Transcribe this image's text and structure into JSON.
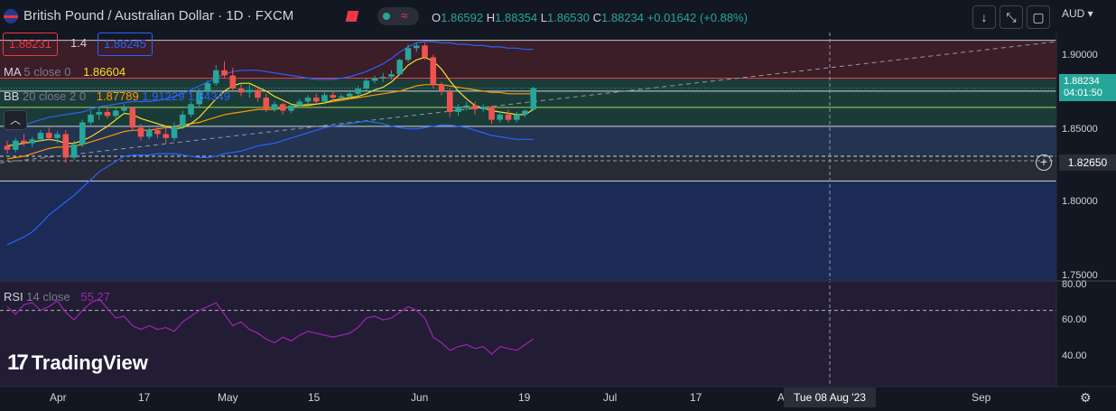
{
  "header": {
    "symbol": "British Pound / Australian Dollar · 1D · FXCM",
    "open_label": "O",
    "open": "1.86592",
    "high_label": "H",
    "high": "1.88354",
    "low_label": "L",
    "low": "1.86530",
    "close_label": "C",
    "close": "1.88234",
    "change": "+0.01642 (+0.88%)"
  },
  "price_boxes": {
    "sell": "1.88231",
    "spread": "1.4",
    "buy": "1.88245"
  },
  "indicators": {
    "ma_label": "MA",
    "ma_params": "5 close 0",
    "ma_value": "1.86604",
    "bb_label": "BB",
    "bb_params": "20 close 2 0",
    "bb_basis": "1.87789",
    "bb_upper": "1.91229",
    "bb_lower": "1.84349",
    "rsi_label": "RSI",
    "rsi_params": "14 close",
    "rsi_value": "55.27"
  },
  "currency": "AUD",
  "price_axis": [
    "1.90000",
    "1.85000",
    "1.80000",
    "1.75000"
  ],
  "rsi_axis": [
    "80.00",
    "60.00",
    "40.00"
  ],
  "last_price": {
    "price": "1.88234",
    "countdown": "04:01:50"
  },
  "crosshair": {
    "price": "1.82650",
    "date": "Tue 08 Aug '23"
  },
  "time_axis": [
    "Apr",
    "17",
    "May",
    "15",
    "Jun",
    "19",
    "Jul",
    "17",
    "A",
    "Sep"
  ],
  "brand": "TradingView",
  "colors": {
    "up": "#26a69a",
    "down": "#ef5350",
    "ma": "#f5e02c",
    "bb_basis": "#ff9800",
    "bb_band": "#2962ff",
    "rsi": "#9c27b0"
  },
  "chart_data": {
    "type": "candlestick",
    "ylim": [
      1.735,
      1.925
    ],
    "candles": [
      [
        1.838,
        1.842,
        1.832,
        1.835
      ],
      [
        1.835,
        1.844,
        1.833,
        1.842
      ],
      [
        1.842,
        1.847,
        1.838,
        1.84
      ],
      [
        1.84,
        1.845,
        1.837,
        1.843
      ],
      [
        1.843,
        1.85,
        1.841,
        1.848
      ],
      [
        1.848,
        1.852,
        1.842,
        1.844
      ],
      [
        1.844,
        1.849,
        1.84,
        1.847
      ],
      [
        1.847,
        1.85,
        1.825,
        1.829
      ],
      [
        1.829,
        1.842,
        1.827,
        1.839
      ],
      [
        1.839,
        1.858,
        1.837,
        1.856
      ],
      [
        1.856,
        1.865,
        1.854,
        1.862
      ],
      [
        1.862,
        1.868,
        1.858,
        1.864
      ],
      [
        1.864,
        1.867,
        1.859,
        1.861
      ],
      [
        1.861,
        1.867,
        1.858,
        1.865
      ],
      [
        1.865,
        1.87,
        1.862,
        1.867
      ],
      [
        1.867,
        1.868,
        1.85,
        1.852
      ],
      [
        1.852,
        1.855,
        1.842,
        1.845
      ],
      [
        1.845,
        1.852,
        1.843,
        1.85
      ],
      [
        1.85,
        1.853,
        1.844,
        1.847
      ],
      [
        1.847,
        1.852,
        1.84,
        1.844
      ],
      [
        1.844,
        1.856,
        1.842,
        1.853
      ],
      [
        1.853,
        1.865,
        1.851,
        1.862
      ],
      [
        1.862,
        1.872,
        1.86,
        1.87
      ],
      [
        1.87,
        1.882,
        1.868,
        1.88
      ],
      [
        1.88,
        1.888,
        1.878,
        1.886
      ],
      [
        1.886,
        1.9,
        1.884,
        1.896
      ],
      [
        1.896,
        1.903,
        1.89,
        1.892
      ],
      [
        1.892,
        1.898,
        1.88,
        1.882
      ],
      [
        1.882,
        1.886,
        1.876,
        1.879
      ],
      [
        1.879,
        1.885,
        1.875,
        1.881
      ],
      [
        1.881,
        1.883,
        1.872,
        1.875
      ],
      [
        1.875,
        1.878,
        1.864,
        1.866
      ],
      [
        1.866,
        1.872,
        1.864,
        1.87
      ],
      [
        1.87,
        1.871,
        1.862,
        1.865
      ],
      [
        1.865,
        1.87,
        1.863,
        1.869
      ],
      [
        1.869,
        1.874,
        1.867,
        1.872
      ],
      [
        1.872,
        1.877,
        1.87,
        1.875
      ],
      [
        1.875,
        1.878,
        1.87,
        1.872
      ],
      [
        1.872,
        1.879,
        1.87,
        1.877
      ],
      [
        1.877,
        1.88,
        1.872,
        1.875
      ],
      [
        1.875,
        1.878,
        1.873,
        1.876
      ],
      [
        1.876,
        1.88,
        1.874,
        1.878
      ],
      [
        1.878,
        1.884,
        1.876,
        1.882
      ],
      [
        1.882,
        1.89,
        1.88,
        1.888
      ],
      [
        1.888,
        1.892,
        1.886,
        1.89
      ],
      [
        1.89,
        1.894,
        1.887,
        1.891
      ],
      [
        1.891,
        1.896,
        1.889,
        1.893
      ],
      [
        1.893,
        1.905,
        1.892,
        1.904
      ],
      [
        1.904,
        1.916,
        1.902,
        1.913
      ],
      [
        1.913,
        1.917,
        1.91,
        1.915
      ],
      [
        1.915,
        1.917,
        1.904,
        1.906
      ],
      [
        1.906,
        1.908,
        1.882,
        1.885
      ],
      [
        1.885,
        1.887,
        1.877,
        1.88
      ],
      [
        1.88,
        1.882,
        1.86,
        1.864
      ],
      [
        1.864,
        1.87,
        1.861,
        1.868
      ],
      [
        1.868,
        1.872,
        1.865,
        1.869
      ],
      [
        1.869,
        1.872,
        1.862,
        1.866
      ],
      [
        1.866,
        1.87,
        1.864,
        1.868
      ],
      [
        1.868,
        1.869,
        1.855,
        1.858
      ],
      [
        1.858,
        1.864,
        1.856,
        1.862
      ],
      [
        1.862,
        1.866,
        1.856,
        1.858
      ],
      [
        1.858,
        1.864,
        1.856,
        1.862
      ],
      [
        1.862,
        1.866,
        1.86,
        1.865
      ],
      [
        1.8659,
        1.8835,
        1.8653,
        1.8823
      ]
    ],
    "ma": [
      1.838,
      1.839,
      1.84,
      1.841,
      1.842,
      1.843,
      1.842,
      1.84,
      1.84,
      1.842,
      1.845,
      1.849,
      1.853,
      1.858,
      1.863,
      1.862,
      1.859,
      1.857,
      1.855,
      1.853,
      1.851,
      1.852,
      1.855,
      1.86,
      1.867,
      1.874,
      1.88,
      1.884,
      1.886,
      1.886,
      1.883,
      1.88,
      1.876,
      1.873,
      1.87,
      1.869,
      1.869,
      1.87,
      1.871,
      1.873,
      1.874,
      1.875,
      1.876,
      1.878,
      1.881,
      1.883,
      1.887,
      1.893,
      1.9,
      1.904,
      1.906,
      1.903,
      1.897,
      1.888,
      1.88,
      1.874,
      1.869,
      1.867,
      1.865,
      1.864,
      1.863,
      1.862,
      1.862,
      1.866
    ],
    "bb_basis": [
      1.828,
      1.829,
      1.83,
      1.832,
      1.834,
      1.836,
      1.837,
      1.837,
      1.838,
      1.839,
      1.841,
      1.843,
      1.845,
      1.847,
      1.849,
      1.85,
      1.85,
      1.85,
      1.851,
      1.852,
      1.853,
      1.854,
      1.855,
      1.856,
      1.858,
      1.86,
      1.862,
      1.863,
      1.864,
      1.865,
      1.866,
      1.866,
      1.866,
      1.867,
      1.868,
      1.869,
      1.87,
      1.87,
      1.871,
      1.872,
      1.873,
      1.874,
      1.875,
      1.876,
      1.877,
      1.878,
      1.879,
      1.88,
      1.882,
      1.884,
      1.885,
      1.885,
      1.885,
      1.884,
      1.883,
      1.882,
      1.881,
      1.88,
      1.879,
      1.879,
      1.878,
      1.878,
      1.878,
      1.878
    ],
    "bb_upper": [
      1.85,
      1.852,
      1.854,
      1.856,
      1.858,
      1.86,
      1.861,
      1.862,
      1.863,
      1.864,
      1.866,
      1.868,
      1.869,
      1.87,
      1.871,
      1.872,
      1.872,
      1.872,
      1.873,
      1.874,
      1.876,
      1.878,
      1.881,
      1.884,
      1.887,
      1.89,
      1.893,
      1.895,
      1.896,
      1.896,
      1.896,
      1.895,
      1.894,
      1.893,
      1.892,
      1.891,
      1.89,
      1.889,
      1.889,
      1.889,
      1.89,
      1.891,
      1.893,
      1.895,
      1.898,
      1.901,
      1.905,
      1.91,
      1.914,
      1.917,
      1.918,
      1.918,
      1.917,
      1.917,
      1.916,
      1.916,
      1.915,
      1.915,
      1.914,
      1.914,
      1.913,
      1.913,
      1.912,
      1.912
    ],
    "bb_lower": [
      1.762,
      1.765,
      1.768,
      1.772,
      1.778,
      1.785,
      1.79,
      1.795,
      1.8,
      1.806,
      1.812,
      1.818,
      1.822,
      1.826,
      1.83,
      1.831,
      1.831,
      1.831,
      1.832,
      1.832,
      1.832,
      1.831,
      1.83,
      1.829,
      1.829,
      1.83,
      1.832,
      1.833,
      1.834,
      1.836,
      1.838,
      1.839,
      1.84,
      1.842,
      1.844,
      1.846,
      1.848,
      1.85,
      1.852,
      1.853,
      1.854,
      1.855,
      1.856,
      1.857,
      1.856,
      1.855,
      1.853,
      1.852,
      1.851,
      1.851,
      1.852,
      1.853,
      1.854,
      1.854,
      1.853,
      1.852,
      1.85,
      1.848,
      1.846,
      1.845,
      1.844,
      1.843,
      1.843,
      1.843
    ],
    "levels": [
      1.919,
      1.89,
      1.88,
      1.8675,
      1.853,
      1.83,
      1.811
    ],
    "rsi": [
      72,
      68,
      73,
      74,
      70,
      72,
      75,
      69,
      65,
      70,
      74,
      76,
      71,
      66,
      67,
      62,
      60,
      62,
      60,
      61,
      59,
      64,
      67,
      70,
      72,
      74,
      68,
      62,
      64,
      60,
      58,
      55,
      53,
      56,
      54,
      57,
      59,
      58,
      57,
      56,
      57,
      58,
      61,
      66,
      67,
      65,
      66,
      69,
      72,
      70,
      66,
      56,
      53,
      49,
      51,
      52,
      50,
      51,
      47,
      51,
      50,
      49,
      52,
      55
    ],
    "rsi_ylim": [
      30,
      85
    ],
    "rsi_bands": [
      70,
      30
    ]
  }
}
